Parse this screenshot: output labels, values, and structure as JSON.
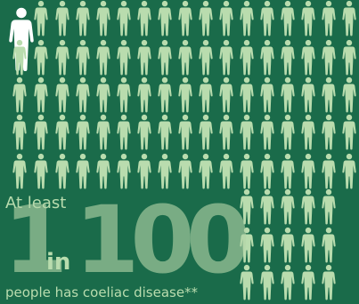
{
  "infographic": {
    "lead_text": "At least",
    "big_number_one": "1",
    "big_number_in": "in",
    "big_number_hundred": "100",
    "footer_text": "people has coeliac disease**"
  },
  "figures": {
    "total": 100,
    "highlighted": 1,
    "highlight_color": "#ffffff",
    "figure_color": "#b9dcae",
    "background_color": "#1a6b4a",
    "icon": "person-silhouette-icon"
  }
}
